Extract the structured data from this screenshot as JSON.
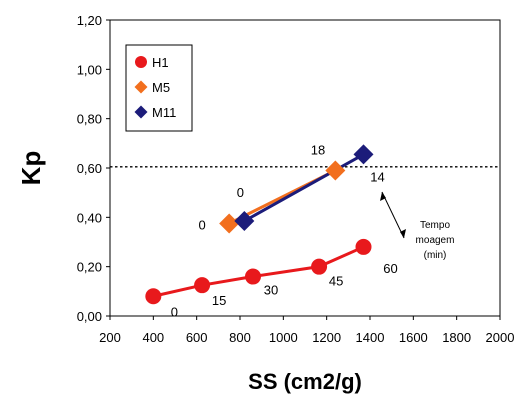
{
  "chart_data": {
    "type": "scatter",
    "xlabel": "SS (cm2/g)",
    "ylabel": "Kp",
    "xlim": [
      200,
      2000
    ],
    "ylim": [
      0,
      1.2
    ],
    "x_ticks": [
      "200",
      "400",
      "600",
      "800",
      "1000",
      "1200",
      "1400",
      "1600",
      "1800",
      "2000"
    ],
    "y_ticks": [
      "0,00",
      "0,20",
      "0,40",
      "0,60",
      "0,80",
      "1,00",
      "1,20"
    ],
    "grid": false,
    "legend_position": "top-left",
    "reference_line": {
      "y": 0.605,
      "style": "dotted"
    },
    "series": [
      {
        "name": "H1",
        "color": "#e8191c",
        "marker": "circle",
        "points": [
          {
            "x": 400,
            "y": 0.08,
            "label": "0"
          },
          {
            "x": 625,
            "y": 0.125,
            "label": "15"
          },
          {
            "x": 860,
            "y": 0.16,
            "label": "30"
          },
          {
            "x": 1165,
            "y": 0.2,
            "label": "45"
          },
          {
            "x": 1370,
            "y": 0.28,
            "label": "60"
          }
        ]
      },
      {
        "name": "M5",
        "color": "#f26f1e",
        "marker": "diamond",
        "points": [
          {
            "x": 750,
            "y": 0.375,
            "label": "0"
          },
          {
            "x": 1240,
            "y": 0.59,
            "label": ""
          }
        ]
      },
      {
        "name": "M11",
        "color": "#1c1c7a",
        "marker": "diamond",
        "points": [
          {
            "x": 820,
            "y": 0.385,
            "label": "0"
          },
          {
            "x": 1370,
            "y": 0.655,
            "label": "14"
          }
        ]
      }
    ],
    "annotations": [
      {
        "text": "18",
        "x": 1160,
        "y": 0.655
      }
    ],
    "note": {
      "lines": [
        "Tempo",
        "moagem",
        "(min)"
      ],
      "x": 1700,
      "y": 0.3
    }
  }
}
